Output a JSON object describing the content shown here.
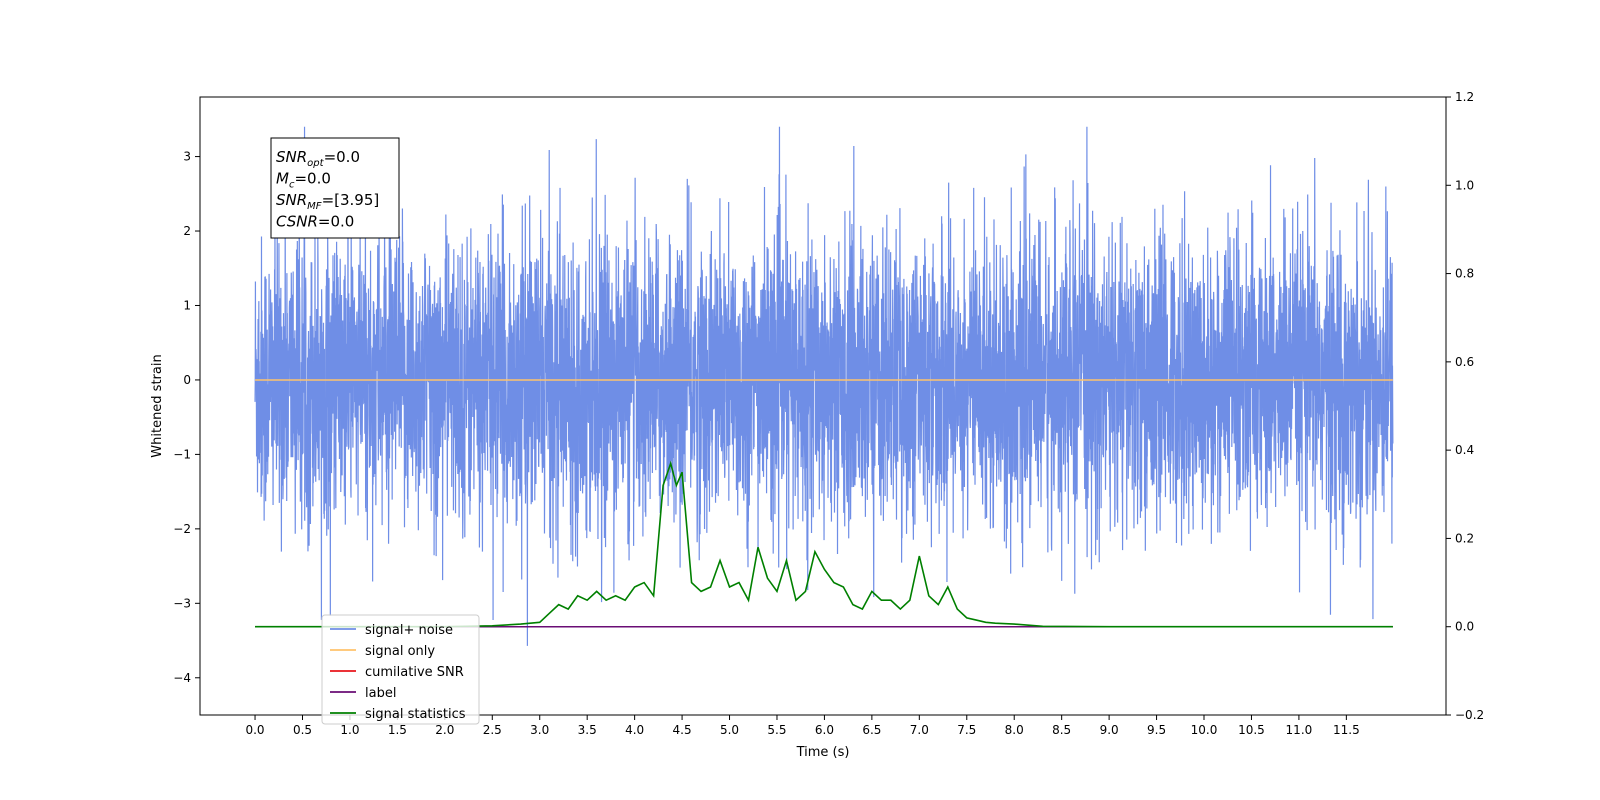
{
  "chart_data": {
    "type": "line",
    "title": "",
    "xlabel": "Time (s)",
    "ylabel": "Whitened strain",
    "xlim": [
      -0.58,
      12.55
    ],
    "ylim": [
      -4.5,
      3.8
    ],
    "y2lim": [
      -0.2,
      1.2
    ],
    "xticks": [
      0.0,
      0.5,
      1.0,
      1.5,
      2.0,
      2.5,
      3.0,
      3.5,
      4.0,
      4.5,
      5.0,
      5.5,
      6.0,
      6.5,
      7.0,
      7.5,
      8.0,
      8.5,
      9.0,
      9.5,
      10.0,
      10.5,
      11.0,
      11.5
    ],
    "xtick_labels": [
      "0.0",
      "0.5",
      "1.0",
      "1.5",
      "2.0",
      "2.5",
      "3.0",
      "3.5",
      "4.0",
      "4.5",
      "5.0",
      "5.5",
      "6.0",
      "6.5",
      "7.0",
      "7.5",
      "8.0",
      "8.5",
      "9.0",
      "9.5",
      "10.0",
      "10.5",
      "11.0",
      "11.5"
    ],
    "yticks": [
      -4,
      -3,
      -2,
      -1,
      0,
      1,
      2,
      3
    ],
    "ytick_labels": [
      "−4",
      "−3",
      "−2",
      "−1",
      "0",
      "1",
      "2",
      "3"
    ],
    "y2ticks": [
      -0.2,
      0.0,
      0.2,
      0.4,
      0.6,
      0.8,
      1.0,
      1.2
    ],
    "y2tick_labels": [
      "−0.2",
      "0.0",
      "0.2",
      "0.4",
      "0.6",
      "0.8",
      "1.0",
      "1.2"
    ],
    "grid": false,
    "legend_position": "lower-left",
    "series": [
      {
        "name": "signal+ noise",
        "color": "#6f8ee6",
        "axis": "left",
        "description_values": {
          "x_start": 0.0,
          "x_end": 11.99,
          "typical_range": [
            -1.6,
            1.6
          ],
          "max": 3.4,
          "min": -4.1
        }
      },
      {
        "name": "signal only",
        "color": "#ffc36b",
        "axis": "left",
        "x": [
          0.0,
          11.99
        ],
        "y": [
          0.0,
          0.0
        ]
      },
      {
        "name": "cumilative SNR",
        "color": "#e8161b",
        "axis": "right",
        "x": [
          0.0,
          11.99
        ],
        "y": [
          0.0,
          0.0
        ]
      },
      {
        "name": "label",
        "color": "#6a0d75",
        "axis": "right",
        "x": [
          0.0,
          11.99
        ],
        "y": [
          0.0,
          0.0
        ]
      },
      {
        "name": "signal statistics",
        "color": "#008000",
        "axis": "right",
        "x": [
          0.0,
          0.5,
          1.0,
          1.5,
          2.0,
          2.5,
          2.8,
          3.0,
          3.1,
          3.2,
          3.3,
          3.4,
          3.5,
          3.6,
          3.7,
          3.8,
          3.9,
          4.0,
          4.1,
          4.2,
          4.3,
          4.38,
          4.44,
          4.5,
          4.6,
          4.7,
          4.8,
          4.9,
          5.0,
          5.1,
          5.2,
          5.3,
          5.4,
          5.5,
          5.6,
          5.7,
          5.8,
          5.9,
          6.0,
          6.1,
          6.2,
          6.3,
          6.4,
          6.5,
          6.6,
          6.7,
          6.8,
          6.9,
          7.0,
          7.1,
          7.2,
          7.3,
          7.4,
          7.5,
          7.6,
          7.7,
          7.8,
          8.0,
          8.3,
          9.0,
          10.0,
          11.0,
          11.99
        ],
        "y": [
          0.0,
          0.0,
          0.0,
          0.0,
          0.0,
          0.002,
          0.006,
          0.01,
          0.03,
          0.05,
          0.04,
          0.07,
          0.06,
          0.08,
          0.06,
          0.07,
          0.06,
          0.09,
          0.1,
          0.07,
          0.32,
          0.37,
          0.32,
          0.35,
          0.1,
          0.08,
          0.09,
          0.15,
          0.09,
          0.1,
          0.06,
          0.18,
          0.11,
          0.08,
          0.15,
          0.06,
          0.08,
          0.17,
          0.13,
          0.1,
          0.09,
          0.05,
          0.04,
          0.08,
          0.06,
          0.06,
          0.04,
          0.06,
          0.16,
          0.07,
          0.05,
          0.09,
          0.04,
          0.02,
          0.015,
          0.01,
          0.008,
          0.006,
          0.001,
          0.0,
          0.0,
          0.0,
          0.0
        ]
      }
    ],
    "annotation": {
      "lines": [
        {
          "var": "SNR",
          "sub": "opt",
          "value": "=0.0"
        },
        {
          "var": "M",
          "sub": "c",
          "value": "=0.0"
        },
        {
          "var": "SNR",
          "sub": "MF",
          "value": "=[3.95]"
        },
        {
          "var": "CSNR",
          "sub": "",
          "value": "=0.0"
        }
      ]
    },
    "legend": [
      {
        "name": "signal+ noise",
        "color": "#6f8ee6"
      },
      {
        "name": "signal only",
        "color": "#ffc36b"
      },
      {
        "name": "cumilative SNR",
        "color": "#e8161b"
      },
      {
        "name": "label",
        "color": "#6a0d75"
      },
      {
        "name": "signal statistics",
        "color": "#008000"
      }
    ]
  }
}
